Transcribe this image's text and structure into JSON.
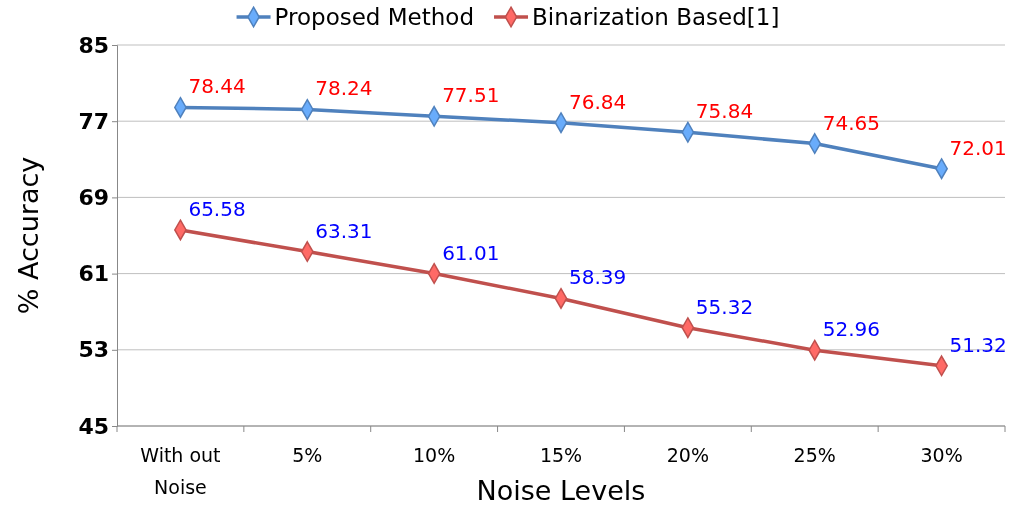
{
  "chart_data": {
    "type": "line",
    "xlabel": "Noise  Levels",
    "ylabel": "% Accuracy",
    "categories": [
      "With out Noise",
      "5%",
      "10%",
      "15%",
      "20%",
      "25%",
      "30%"
    ],
    "series": [
      {
        "name": "Proposed Method",
        "color": "#4f81bd",
        "values": [
          78.44,
          78.24,
          77.51,
          76.84,
          75.84,
          74.65,
          72.01
        ]
      },
      {
        "name": "Binarization Based[1]",
        "color": "#c0504d",
        "values": [
          65.58,
          63.31,
          61.01,
          58.39,
          55.32,
          52.96,
          51.32
        ]
      }
    ],
    "ylim": [
      45,
      85
    ],
    "yticks": [
      45,
      53,
      61,
      69,
      77,
      85
    ],
    "grid": "y",
    "legend": "top",
    "marker": "diamond",
    "line_style": "solid",
    "data_labels": true
  }
}
